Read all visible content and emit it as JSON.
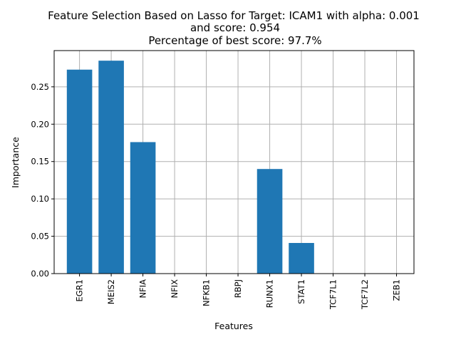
{
  "chart_data": {
    "type": "bar",
    "title_lines": [
      "Feature Selection Based on Lasso for Target: ICAM1 with alpha: 0.001",
      "and score: 0.954",
      "Percentage of best score: 97.7%"
    ],
    "xlabel": "Features",
    "ylabel": "Importance",
    "categories": [
      "EGR1",
      "MEIS2",
      "NFIA",
      "NFIX",
      "NFKB1",
      "RBPJ",
      "RUNX1",
      "STAT1",
      "TCF7L1",
      "TCF7L2",
      "ZEB1"
    ],
    "values": [
      0.273,
      0.285,
      0.176,
      0.0,
      0.0,
      0.0,
      0.14,
      0.041,
      0.0,
      0.0,
      0.0
    ],
    "ylim": [
      0,
      0.2985
    ],
    "yticks": [
      0.0,
      0.05,
      0.1,
      0.15,
      0.2,
      0.25
    ],
    "ytick_labels": [
      "0.00",
      "0.05",
      "0.10",
      "0.15",
      "0.20",
      "0.25"
    ],
    "grid": true,
    "bar_color": "#1f77b4",
    "grid_color": "#b0b0b0"
  }
}
